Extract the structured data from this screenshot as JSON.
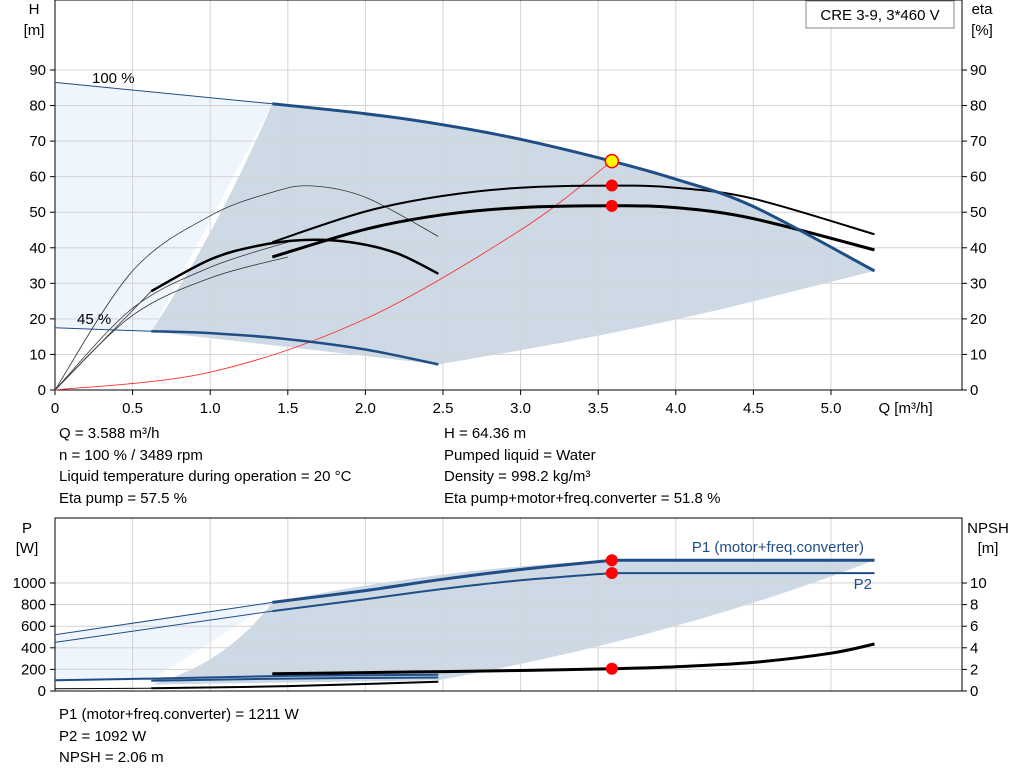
{
  "chart_data": [
    {
      "type": "line",
      "title": "CRE 3-9, 3*460 V",
      "x_axis": {
        "label": "Q [m³/h]",
        "range": [
          0,
          5.5
        ],
        "ticks": [
          "0",
          "0.5",
          "1.0",
          "1.5",
          "2.0",
          "2.5",
          "3.0",
          "3.5",
          "4.0",
          "4.5",
          "5.0"
        ]
      },
      "y_left": {
        "label": [
          "H",
          "[m]"
        ],
        "range": [
          0,
          95
        ],
        "ticks": [
          "0",
          "10",
          "20",
          "30",
          "40",
          "50",
          "60",
          "70",
          "80",
          "90"
        ]
      },
      "y_right": {
        "label": [
          "eta",
          "[%]"
        ],
        "range": [
          0,
          95
        ],
        "ticks": [
          "0",
          "10",
          "20",
          "30",
          "40",
          "50",
          "60",
          "70",
          "80",
          "90"
        ]
      },
      "grid": true,
      "annotations": [
        "100 %",
        "45 %"
      ],
      "series": [
        {
          "role": "head-100",
          "x": [
            1.4,
            2.0,
            2.5,
            3.0,
            3.588,
            4.0,
            4.5,
            5.28
          ],
          "y": [
            80.5,
            77.7,
            74.6,
            70.5,
            64.36,
            59.3,
            51.6,
            33.5
          ]
        },
        {
          "role": "head-100-ext",
          "x": [
            0,
            1.4
          ],
          "y": [
            86.5,
            80.5
          ]
        },
        {
          "role": "head-45",
          "x": [
            0.62,
            1.0,
            1.5,
            2.0,
            2.47
          ],
          "y": [
            16.5,
            16.0,
            14.3,
            11.4,
            7.2
          ]
        },
        {
          "role": "head-45-ext",
          "x": [
            0,
            0.62
          ],
          "y": [
            17.5,
            16.5
          ]
        },
        {
          "role": "eta-pump",
          "x": [
            1.4,
            2.0,
            2.5,
            3.0,
            3.588,
            4.0,
            4.5,
            5.28
          ],
          "y": [
            41.6,
            50.2,
            54.6,
            56.9,
            57.5,
            56.9,
            53.8,
            43.8
          ]
        },
        {
          "role": "eta-total",
          "x": [
            1.4,
            2.0,
            2.5,
            3.0,
            3.588,
            4.0,
            4.5,
            5.28
          ],
          "y": [
            37.4,
            45.2,
            49.3,
            51.3,
            51.8,
            51.3,
            48.2,
            39.4
          ]
        },
        {
          "role": "eta-pump-45",
          "x": [
            0.62,
            1.0,
            1.3,
            1.6,
            1.9,
            2.2,
            2.47
          ],
          "y": [
            27.8,
            36.7,
            40.5,
            42.2,
            41.6,
            38.5,
            32.7
          ]
        },
        {
          "role": "eta-pump-45-ext",
          "x": [
            0,
            0.62
          ],
          "y": [
            0,
            27.8
          ]
        },
        {
          "role": "eta-thin-high",
          "x": [
            0,
            0.5,
            1.0,
            1.4,
            1.65,
            2.0,
            2.47
          ],
          "y": [
            0,
            33.5,
            49.0,
            55.6,
            57.4,
            54.2,
            43.2
          ]
        },
        {
          "role": "eta-thin-mid",
          "x": [
            0,
            0.5,
            1.0,
            1.5
          ],
          "y": [
            0,
            23.0,
            34.5,
            41.6
          ]
        },
        {
          "role": "eta-thin-low",
          "x": [
            0,
            0.5,
            1.0,
            1.5
          ],
          "y": [
            0,
            21.0,
            31.5,
            37.4
          ]
        },
        {
          "role": "system-curve",
          "x": [
            0,
            1.0,
            2.0,
            3.0,
            3.588
          ],
          "y": [
            0,
            5.0,
            20.0,
            45.0,
            64.36
          ]
        }
      ],
      "duty_points": [
        {
          "x": 3.588,
          "y": 64.36,
          "color": "#ffff00"
        },
        {
          "x": 3.588,
          "y": 57.5,
          "color": "#ff0000"
        },
        {
          "x": 3.588,
          "y": 51.8,
          "color": "#ff0000"
        }
      ],
      "colors": {
        "head": "#1f4e86",
        "eta": "#000000",
        "system": "#ff3030",
        "area_light": "#eef5fc",
        "area_dark": "#cdd9e5",
        "point": "#ff0000"
      }
    },
    {
      "type": "line",
      "x_axis": {
        "range": [
          0,
          5.5
        ]
      },
      "y_left": {
        "label": [
          "P",
          "[W]"
        ],
        "range": [
          0,
          1200
        ],
        "ticks": [
          "0",
          "200",
          "400",
          "600",
          "800",
          "1000"
        ]
      },
      "y_right": {
        "label": [
          "NPSH",
          "[m]"
        ],
        "range": [
          0,
          12
        ],
        "ticks": [
          "0",
          "2",
          "4",
          "6",
          "8",
          "10"
        ]
      },
      "grid": true,
      "series": [
        {
          "name": "P1 (motor+freq.converter)",
          "axis": "left",
          "x": [
            1.4,
            2.0,
            2.5,
            3.0,
            3.588,
            5.28
          ],
          "y": [
            820,
            930,
            1035,
            1125,
            1211,
            1211
          ]
        },
        {
          "name": "P2",
          "axis": "left",
          "x": [
            1.4,
            2.0,
            2.5,
            3.0,
            3.588,
            5.28
          ],
          "y": [
            740,
            850,
            945,
            1025,
            1092,
            1092
          ]
        },
        {
          "role": "p1-ext",
          "axis": "left",
          "x": [
            0,
            1.4
          ],
          "y": [
            520,
            820
          ]
        },
        {
          "role": "p2-ext",
          "axis": "left",
          "x": [
            0,
            1.4
          ],
          "y": [
            450,
            740
          ]
        },
        {
          "role": "p1-45",
          "axis": "left",
          "x": [
            0,
            0.62,
            1.5,
            2.47
          ],
          "y": [
            100,
            115,
            140,
            150
          ]
        },
        {
          "role": "p2-45",
          "axis": "left",
          "x": [
            0.62,
            1.5,
            2.47
          ],
          "y": [
            95,
            115,
            125
          ]
        },
        {
          "role": "npsh-45",
          "axis": "right",
          "x": [
            0.62,
            1.5,
            2.47
          ],
          "y": [
            0.25,
            0.45,
            0.85
          ]
        },
        {
          "role": "npsh-45-ext",
          "axis": "right",
          "x": [
            0,
            0.62
          ],
          "y": [
            0.2,
            0.25
          ]
        },
        {
          "role": "npsh",
          "axis": "right",
          "x": [
            1.4,
            2.0,
            2.5,
            3.0,
            3.588,
            4.0,
            4.5,
            5.0,
            5.28
          ],
          "y": [
            1.6,
            1.7,
            1.8,
            1.9,
            2.06,
            2.25,
            2.65,
            3.5,
            4.35
          ]
        }
      ],
      "duty_points": [
        {
          "x": 3.588,
          "y": 1211,
          "axis": "left"
        },
        {
          "x": 3.588,
          "y": 1092,
          "axis": "left"
        },
        {
          "x": 3.588,
          "y": 2.06,
          "axis": "right"
        }
      ],
      "colors": {
        "power": "#1f4e86",
        "npsh": "#000000"
      }
    }
  ],
  "info_top_left": [
    "Q = 3.588 m³/h",
    "n = 100 % / 3489 rpm",
    "Liquid temperature during operation = 20 °C",
    "Eta pump = 57.5 %"
  ],
  "info_top_right": [
    "H = 64.36 m",
    "Pumped liquid = Water",
    "Density = 998.2 kg/m³",
    "Eta pump+motor+freq.converter = 51.8 %"
  ],
  "info_bottom": [
    "P1 (motor+freq.converter) = 1211 W",
    "P2 = 1092 W",
    "NPSH = 2.06 m"
  ]
}
